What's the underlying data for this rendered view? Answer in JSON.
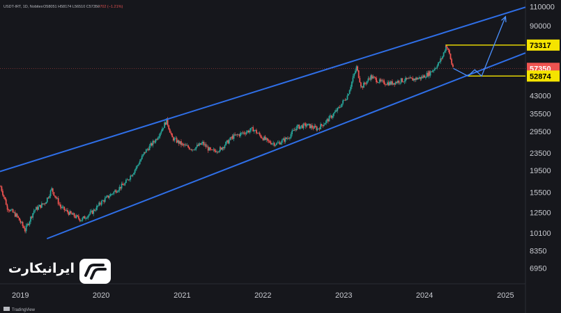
{
  "header": {
    "symbol": "USDT-IRT, 1D, Nobitex",
    "ohlc": "O58051 H58174 L56510 C57350",
    "change": "−702 (−1.21%)"
  },
  "colors": {
    "background": "#16171c",
    "channel": "#2f6fe8",
    "candle_up": "#26a69a",
    "candle_down": "#ef5350",
    "target_lines": "#f5e400",
    "price_tag": "#ef5350",
    "forecast": "#4a90ff"
  },
  "chart_data": {
    "type": "candlestick",
    "y_scale": "log",
    "ylim": [
      5900,
      118000
    ],
    "xlim": [
      "2018-10-01",
      "2025-04-01"
    ],
    "y_ticks": [
      "110000",
      "90000",
      "73317",
      "57350",
      "52874",
      "43000",
      "35500",
      "29500",
      "23500",
      "19500",
      "15500",
      "12500",
      "10100",
      "8350",
      "6950"
    ],
    "x_ticks": [
      {
        "date": "2019-01-01",
        "label": "2019"
      },
      {
        "date": "2020-01-01",
        "label": "2020"
      },
      {
        "date": "2021-01-01",
        "label": "2021"
      },
      {
        "date": "2022-01-01",
        "label": "2022"
      },
      {
        "date": "2023-01-01",
        "label": "2023"
      },
      {
        "date": "2024-01-01",
        "label": "2024"
      },
      {
        "date": "2025-01-01",
        "label": "2025"
      }
    ],
    "price_path": [
      [
        "2018-10-01",
        16500
      ],
      [
        "2018-11-01",
        13200
      ],
      [
        "2018-12-15",
        12000
      ],
      [
        "2019-01-20",
        10400
      ],
      [
        "2019-03-01",
        12800
      ],
      [
        "2019-04-20",
        13900
      ],
      [
        "2019-05-20",
        16000
      ],
      [
        "2019-07-01",
        13200
      ],
      [
        "2019-08-15",
        12300
      ],
      [
        "2019-10-01",
        11600
      ],
      [
        "2019-11-20",
        12600
      ],
      [
        "2020-01-01",
        14000
      ],
      [
        "2020-03-01",
        15700
      ],
      [
        "2020-04-15",
        17000
      ],
      [
        "2020-06-01",
        19800
      ],
      [
        "2020-07-15",
        23800
      ],
      [
        "2020-09-01",
        27000
      ],
      [
        "2020-10-20",
        33000
      ],
      [
        "2020-11-15",
        27500
      ],
      [
        "2021-01-01",
        25500
      ],
      [
        "2021-02-15",
        24500
      ],
      [
        "2021-04-01",
        26000
      ],
      [
        "2021-05-10",
        23800
      ],
      [
        "2021-06-20",
        24500
      ],
      [
        "2021-08-15",
        27800
      ],
      [
        "2021-10-01",
        29000
      ],
      [
        "2021-11-15",
        30200
      ],
      [
        "2021-12-20",
        28000
      ],
      [
        "2022-01-20",
        26500
      ],
      [
        "2022-03-01",
        25800
      ],
      [
        "2022-04-20",
        27500
      ],
      [
        "2022-06-01",
        30800
      ],
      [
        "2022-07-15",
        31500
      ],
      [
        "2022-09-01",
        30300
      ],
      [
        "2022-10-15",
        33000
      ],
      [
        "2022-12-01",
        37000
      ],
      [
        "2023-01-15",
        43000
      ],
      [
        "2023-02-10",
        52000
      ],
      [
        "2023-02-25",
        58000
      ],
      [
        "2023-03-20",
        47000
      ],
      [
        "2023-05-01",
        52500
      ],
      [
        "2023-06-15",
        49500
      ],
      [
        "2023-08-01",
        49000
      ],
      [
        "2023-09-15",
        50500
      ],
      [
        "2023-11-01",
        51000
      ],
      [
        "2023-12-15",
        52000
      ],
      [
        "2024-01-20",
        54500
      ],
      [
        "2024-02-25",
        59000
      ],
      [
        "2024-03-20",
        65000
      ],
      [
        "2024-04-05",
        73317
      ],
      [
        "2024-04-20",
        66500
      ],
      [
        "2024-05-01",
        60000
      ],
      [
        "2024-05-10",
        57350
      ]
    ],
    "channel_upper": [
      [
        "2018-10-01",
        19300
      ],
      [
        "2025-01-15",
        103500
      ]
    ],
    "channel_lower": [
      [
        "2019-05-01",
        9500
      ],
      [
        "2025-01-15",
        63000
      ]
    ],
    "levels": [
      {
        "name": "resistance",
        "label": "73317",
        "value": 73317,
        "from": "2024-04-05"
      },
      {
        "name": "current",
        "label": "57350",
        "value": 57350
      },
      {
        "name": "support",
        "label": "52874",
        "value": 52874,
        "from": "2024-07-15"
      }
    ],
    "forecast_path": [
      [
        "2024-05-10",
        57350
      ],
      [
        "2024-07-15",
        52874
      ],
      [
        "2024-08-15",
        56500
      ],
      [
        "2024-09-15",
        52874
      ],
      [
        "2025-01-01",
        99000
      ]
    ]
  },
  "branding": {
    "logo_text": "ایرانیکارت",
    "footer": "TradingView"
  }
}
